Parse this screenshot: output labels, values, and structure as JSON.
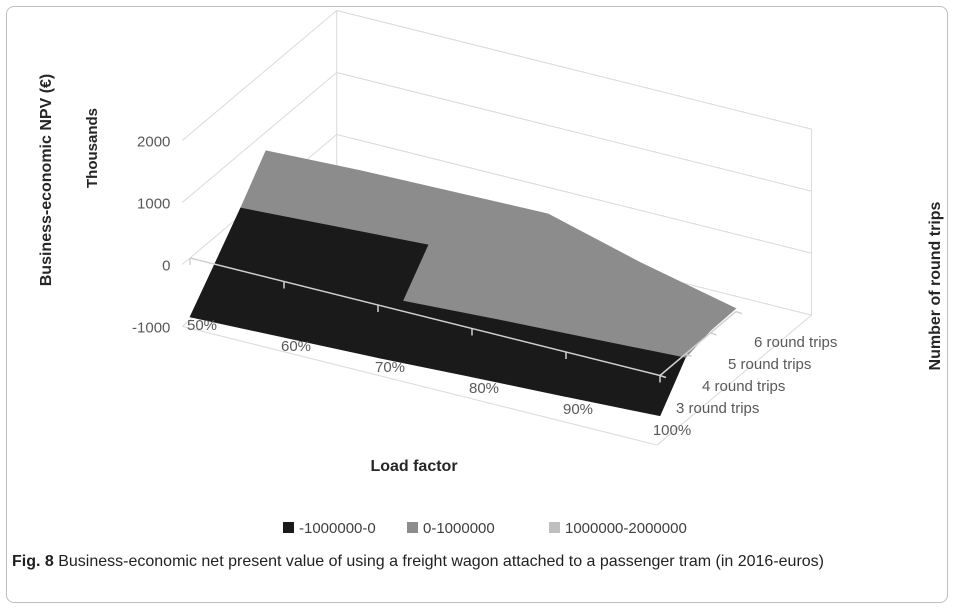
{
  "chart_data": {
    "type": "area",
    "subtype": "3d-surface",
    "ylabel": "Business-economic NPV (€)",
    "y_units_label": "Thousands",
    "xlabel": "Load factor",
    "zlabel": "Number of round trips",
    "x_categories": [
      "50%",
      "60%",
      "70%",
      "80%",
      "90%",
      "100%"
    ],
    "z_categories": [
      "3 round trips",
      "4 round trips",
      "5 round trips",
      "6 round trips"
    ],
    "y_ticks": [
      "-1000",
      "0",
      "1000",
      "2000"
    ],
    "ylim": [
      -1000,
      2000
    ],
    "y_scale": 1000,
    "grid": true,
    "legend_position": "bottom",
    "legend": [
      {
        "name": "-1000000-0",
        "color": "#1a1a1a"
      },
      {
        "name": "0-1000000",
        "color": "#8c8c8c"
      },
      {
        "name": "1000000-2000000",
        "color": "#bfbfbf"
      }
    ],
    "values_by_round_trips": [
      {
        "name": "3 round trips",
        "values": [
          -950,
          -900,
          -850,
          -780,
          -720,
          -650
        ]
      },
      {
        "name": "4 round trips",
        "values": [
          -420,
          -350,
          -280,
          -200,
          -130,
          -60
        ]
      },
      {
        "name": "5 round trips",
        "values": [
          120,
          200,
          280,
          350,
          200,
          40
        ]
      },
      {
        "name": "6 round trips",
        "values": [
          700,
          760,
          790,
          820,
          400,
          50
        ]
      }
    ]
  },
  "caption": {
    "label": "Fig. 8",
    "text": " Business-economic net present value of using a freight wagon attached to a passenger tram (in 2016-euros)"
  }
}
